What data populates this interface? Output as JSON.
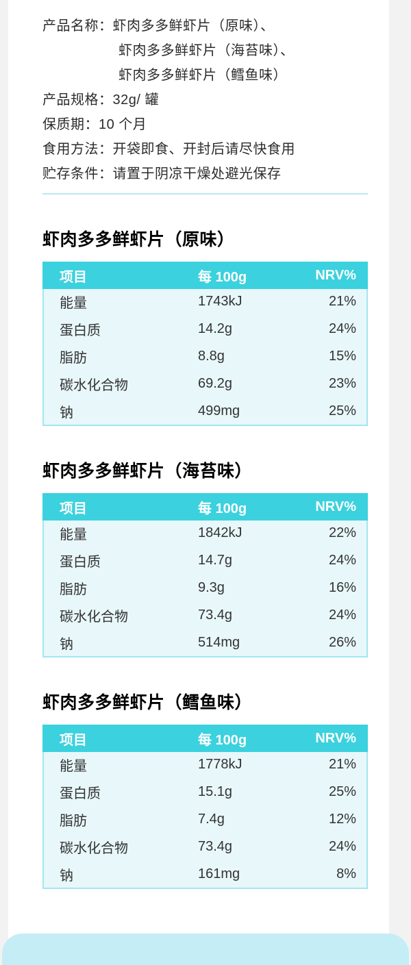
{
  "theme": {
    "page_bg": "#f2f2f2",
    "card_bg": "#ffffff",
    "accent": "#3bd1de",
    "table_body_bg": "#e8f7fa",
    "table_border": "#a2e6ef",
    "divider": "#b4ebf3",
    "bottom_panel_bg": "#c5edf6"
  },
  "product_info": {
    "lines": [
      "产品名称：虾肉多多鲜虾片（原味）、",
      "虾肉多多鲜虾片（海苔味）、",
      "虾肉多多鲜虾片（鳕鱼味）",
      "产品规格：32g/ 罐",
      "保质期：10 个月",
      "食用方法：开袋即食、开封后请尽快食用",
      "贮存条件：请置于阴凉干燥处避光保存"
    ]
  },
  "tables": [
    {
      "title": "虾肉多多鲜虾片（原味）",
      "headers": [
        "项目",
        "每 100g",
        "NRV%"
      ],
      "rows": [
        [
          "能量",
          "1743kJ",
          "21%"
        ],
        [
          "蛋白质",
          "14.2g",
          "24%"
        ],
        [
          "脂肪",
          "8.8g",
          "15%"
        ],
        [
          "碳水化合物",
          "69.2g",
          "23%"
        ],
        [
          "钠",
          "499mg",
          "25%"
        ]
      ]
    },
    {
      "title": "虾肉多多鲜虾片（海苔味）",
      "headers": [
        "项目",
        "每 100g",
        "NRV%"
      ],
      "rows": [
        [
          "能量",
          "1842kJ",
          "22%"
        ],
        [
          "蛋白质",
          "14.7g",
          "24%"
        ],
        [
          "脂肪",
          "9.3g",
          "16%"
        ],
        [
          "碳水化合物",
          "73.4g",
          "24%"
        ],
        [
          "钠",
          "514mg",
          "26%"
        ]
      ]
    },
    {
      "title": "虾肉多多鲜虾片（鳕鱼味）",
      "headers": [
        "项目",
        "每 100g",
        "NRV%"
      ],
      "rows": [
        [
          "能量",
          "1778kJ",
          "21%"
        ],
        [
          "蛋白质",
          "15.1g",
          "25%"
        ],
        [
          "脂肪",
          "7.4g",
          "12%"
        ],
        [
          "碳水化合物",
          "73.4g",
          "24%"
        ],
        [
          "钠",
          "161mg",
          "8%"
        ]
      ]
    }
  ]
}
